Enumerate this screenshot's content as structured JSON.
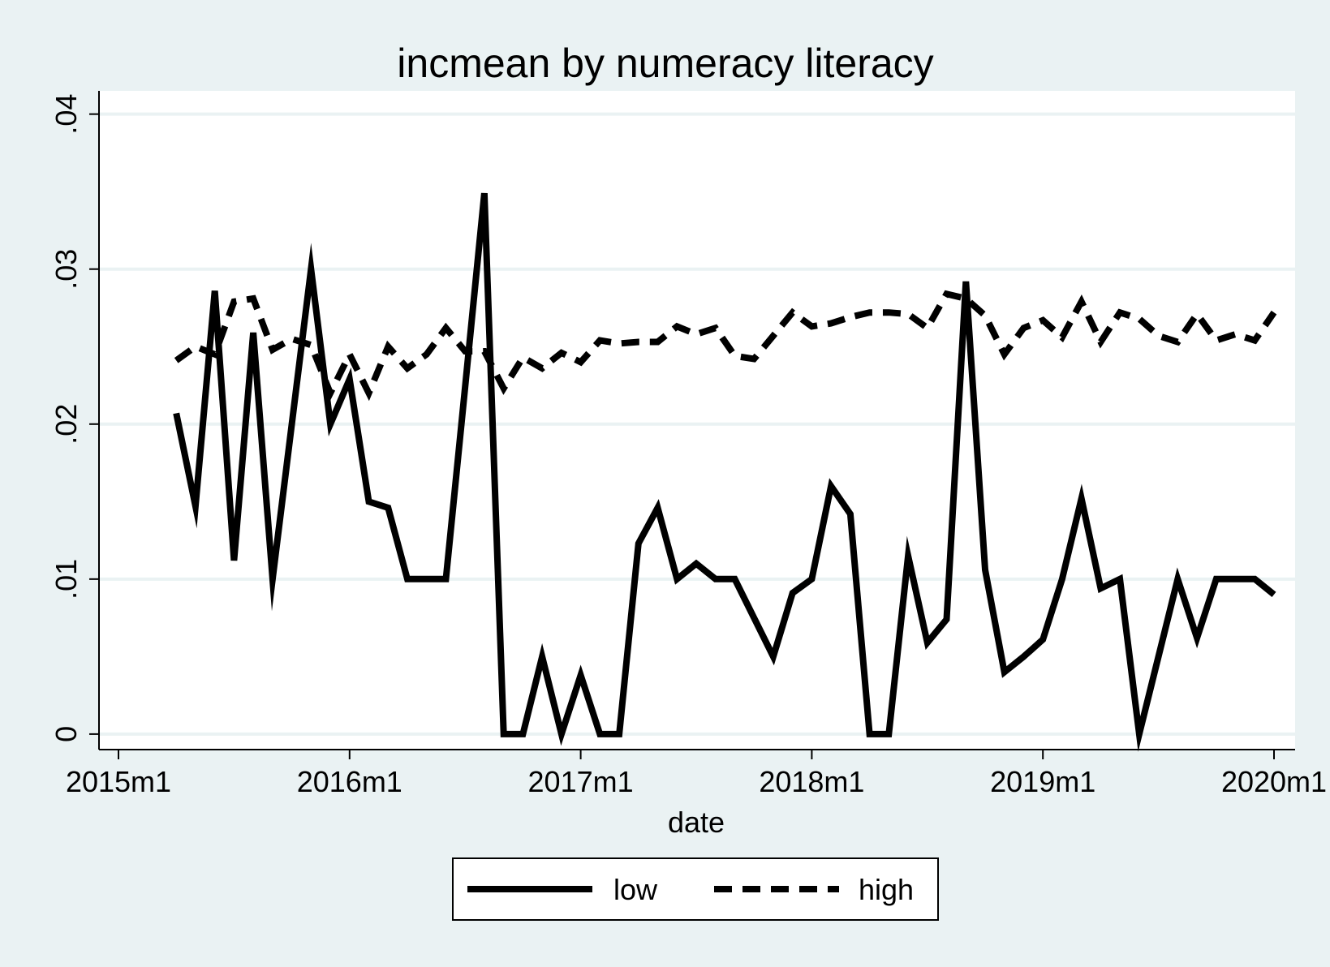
{
  "chart_data": {
    "type": "line",
    "title": "incmean by numeracy literacy",
    "xlabel": "date",
    "ylabel": "",
    "x_ticks": [
      "2015m1",
      "2016m1",
      "2017m1",
      "2018m1",
      "2019m1",
      "2020m1"
    ],
    "y_ticks": [
      "0",
      ".01",
      ".02",
      ".03",
      ".04"
    ],
    "xlim": [
      "2015m1",
      "2020m1"
    ],
    "ylim": [
      -0.001,
      0.0415
    ],
    "grid": true,
    "legend_position": "bottom",
    "colors": {
      "background": "#eaf2f3",
      "plot_area": "#ffffff",
      "line": "#000000",
      "grid": "#eaf2f3"
    },
    "x": [
      "2015m4",
      "2015m5",
      "2015m6",
      "2015m7",
      "2015m8",
      "2015m9",
      "2015m10",
      "2015m11",
      "2015m12",
      "2016m1",
      "2016m2",
      "2016m3",
      "2016m4",
      "2016m5",
      "2016m6",
      "2016m7",
      "2016m8",
      "2016m9",
      "2016m10",
      "2016m11",
      "2016m12",
      "2017m1",
      "2017m2",
      "2017m3",
      "2017m4",
      "2017m5",
      "2017m6",
      "2017m7",
      "2017m8",
      "2017m9",
      "2017m10",
      "2017m11",
      "2017m12",
      "2018m1",
      "2018m2",
      "2018m3",
      "2018m4",
      "2018m5",
      "2018m6",
      "2018m7",
      "2018m8",
      "2018m9",
      "2018m10",
      "2018m11",
      "2018m12",
      "2019m1",
      "2019m2",
      "2019m3",
      "2019m4",
      "2019m5",
      "2019m6",
      "2019m7",
      "2019m8",
      "2019m9",
      "2019m10",
      "2019m11",
      "2019m12",
      "2020m1"
    ],
    "series": [
      {
        "name": "low",
        "style": "solid",
        "values": [
          0.0207,
          0.0147,
          0.0286,
          0.0112,
          0.0259,
          0.01,
          0.02,
          0.03,
          0.02,
          0.0229,
          0.015,
          0.0146,
          0.01,
          0.01,
          0.01,
          0.0224,
          0.0349,
          0.0,
          0.0,
          0.005,
          0.0,
          0.0038,
          0.0,
          0.0,
          0.0123,
          0.0146,
          0.01,
          0.011,
          0.01,
          0.01,
          0.0075,
          0.005,
          0.0091,
          0.01,
          0.016,
          0.0142,
          0.0,
          0.0,
          0.0115,
          0.0059,
          0.0074,
          0.0292,
          0.0106,
          0.004,
          0.005,
          0.0061,
          0.01,
          0.0152,
          0.0094,
          0.01,
          0.0,
          0.005,
          0.01,
          0.0062,
          0.01,
          0.01,
          0.01,
          0.009
        ]
      },
      {
        "name": "high",
        "style": "dashed",
        "values": [
          0.0241,
          0.025,
          0.0245,
          0.0279,
          0.0281,
          0.0248,
          0.0255,
          0.0251,
          0.022,
          0.0245,
          0.022,
          0.025,
          0.0236,
          0.0245,
          0.0262,
          0.0247,
          0.0247,
          0.0223,
          0.0243,
          0.0236,
          0.0246,
          0.024,
          0.0254,
          0.0252,
          0.0253,
          0.0253,
          0.0263,
          0.0258,
          0.0262,
          0.0244,
          0.0242,
          0.0257,
          0.0272,
          0.0263,
          0.0265,
          0.0269,
          0.0272,
          0.0272,
          0.0271,
          0.0262,
          0.0284,
          0.0281,
          0.027,
          0.0245,
          0.0262,
          0.0267,
          0.0256,
          0.0279,
          0.0253,
          0.0272,
          0.0268,
          0.0257,
          0.0253,
          0.0271,
          0.0254,
          0.0258,
          0.0254,
          0.0272
        ]
      }
    ]
  }
}
